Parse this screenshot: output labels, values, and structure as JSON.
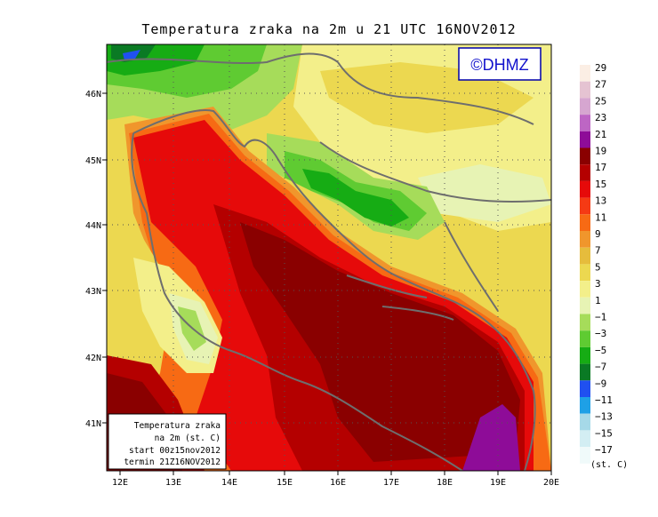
{
  "title": "Temperatura zraka na 2m u 21 UTC 16NOV2012",
  "logo_text": "©DHMZ",
  "info_box": {
    "line1": "Temperatura zraka",
    "line2": "na 2m (st. C)",
    "line3": "start 00z15nov2012",
    "line4": "termin 21Z16NOV2012"
  },
  "lat_labels": [
    "46N",
    "45N",
    "44N",
    "43N",
    "42N",
    "41N"
  ],
  "lon_labels": [
    "12E",
    "13E",
    "14E",
    "15E",
    "16E",
    "17E",
    "18E",
    "19E",
    "20E"
  ],
  "legend": {
    "unit": "(st. C)",
    "bins": [
      {
        "label": "29",
        "color": "#fbeee4"
      },
      {
        "label": "27",
        "color": "#e5c3d2"
      },
      {
        "label": "25",
        "color": "#d6a6d0"
      },
      {
        "label": "23",
        "color": "#bd66c4"
      },
      {
        "label": "21",
        "color": "#8e0c98"
      },
      {
        "label": "19",
        "color": "#8a0000"
      },
      {
        "label": "17",
        "color": "#b40000"
      },
      {
        "label": "15",
        "color": "#e60a0a"
      },
      {
        "label": "13",
        "color": "#f53a14"
      },
      {
        "label": "11",
        "color": "#f76a14"
      },
      {
        "label": "9",
        "color": "#f0962c"
      },
      {
        "label": "7",
        "color": "#e6bc3c"
      },
      {
        "label": "5",
        "color": "#ecd850"
      },
      {
        "label": "3",
        "color": "#f3ef8a"
      },
      {
        "label": "1",
        "color": "#e7f3b4"
      },
      {
        "label": "−1",
        "color": "#a6dc5a"
      },
      {
        "label": "−3",
        "color": "#5fcb32"
      },
      {
        "label": "−5",
        "color": "#16ac14"
      },
      {
        "label": "−7",
        "color": "#0a7a24"
      },
      {
        "label": "−9",
        "color": "#2050f0"
      },
      {
        "label": "−11",
        "color": "#1ea0e6"
      },
      {
        "label": "−13",
        "color": "#a6d9e8"
      },
      {
        "label": "−15",
        "color": "#d3eef3"
      },
      {
        "label": "−17",
        "color": "#f0fafa"
      }
    ]
  },
  "colors": {
    "coast": "#6e6e6e",
    "logo_border": "#0000aa",
    "logo_text": "#1111cc"
  }
}
